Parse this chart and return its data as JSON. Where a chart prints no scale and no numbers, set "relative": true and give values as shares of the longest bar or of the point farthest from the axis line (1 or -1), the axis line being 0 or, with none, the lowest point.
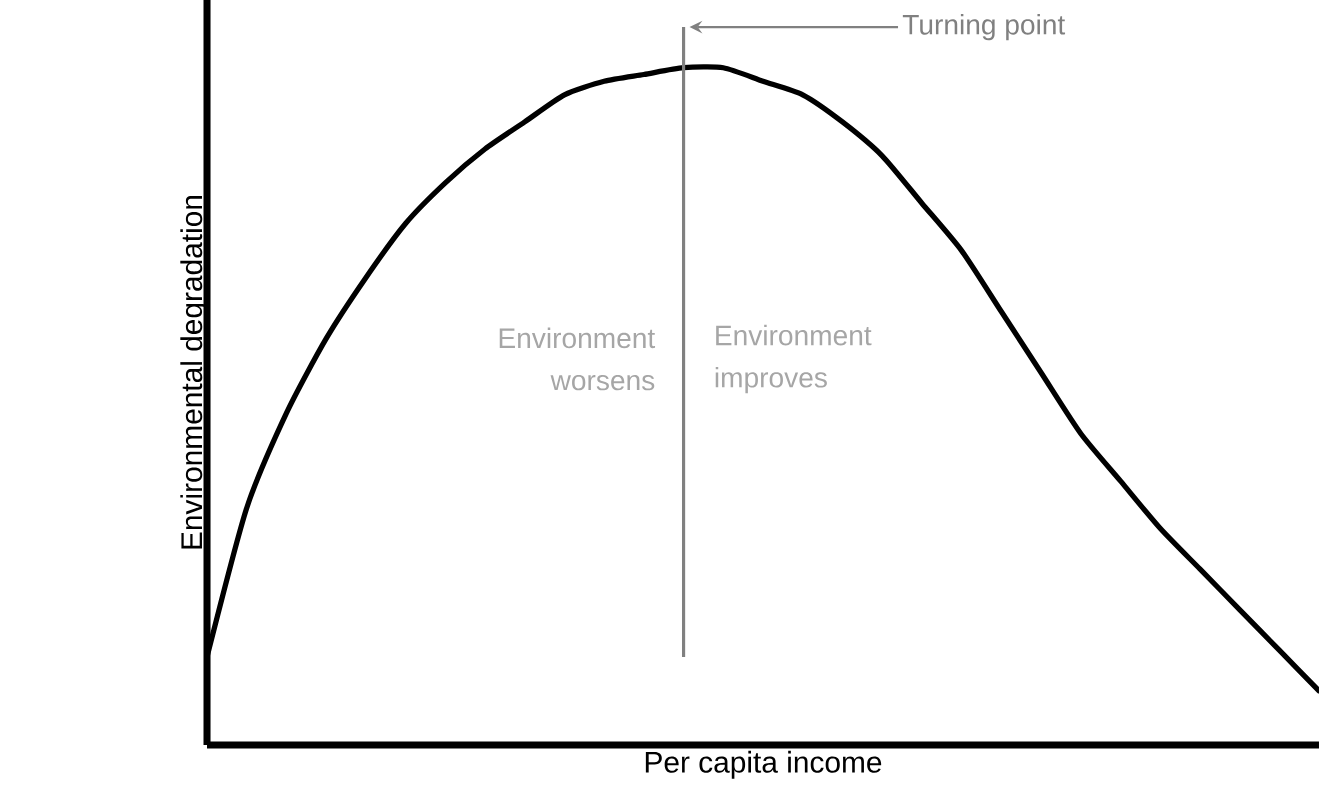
{
  "chart_data": {
    "type": "line",
    "relative": true,
    "xlabel": "Per capita income",
    "ylabel": "Environmental degradation",
    "categories": [
      null,
      null,
      null,
      null,
      null,
      null,
      null,
      null,
      null,
      null,
      null,
      null,
      null,
      null,
      null,
      null,
      null,
      null,
      null,
      null,
      null,
      null,
      null,
      null,
      null,
      null,
      null,
      null,
      null
    ],
    "series": [
      {
        "color": "#000000",
        "values": [
          0.13,
          0.35,
          0.49,
          0.6,
          0.69,
          0.77,
          0.83,
          0.88,
          0.92,
          0.96,
          0.98,
          0.99,
          1.0,
          1.0,
          0.98,
          0.96,
          0.92,
          0.87,
          0.8,
          0.73,
          0.64,
          0.55,
          0.46,
          0.39,
          0.32,
          0.26,
          0.2,
          0.14,
          0.08
        ]
      }
    ],
    "annotations": [
      "Turning point",
      "Environment worsens",
      "Environment improves"
    ],
    "marker": "none",
    "line_style": "solid"
  }
}
